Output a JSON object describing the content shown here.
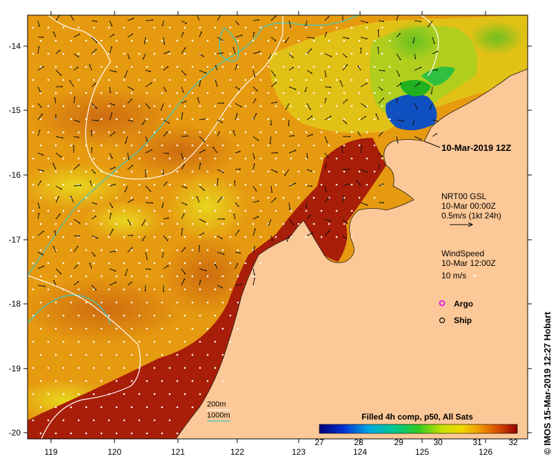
{
  "map": {
    "x_ticks": [
      "119",
      "120",
      "121",
      "122",
      "123",
      "124",
      "125",
      "126"
    ],
    "y_ticks": [
      "-14",
      "-15",
      "-16",
      "-17",
      "-18",
      "-19",
      "-20"
    ],
    "snapshot_label": "10-Mar-2019 12Z",
    "current_legend": {
      "line1": "NRT00 GSL",
      "line2": "10-Mar 00:00Z",
      "line3": "0.5m/s (1kt 24h)"
    },
    "wind_legend": {
      "line1": "WindSpeed",
      "line2": "10-Mar 12:00Z",
      "line3": "10 m/s"
    },
    "markers": {
      "argo": "Argo",
      "ship": "Ship"
    },
    "contours": {
      "c200": "200m",
      "c1000": "1000m"
    },
    "colorbar": {
      "title": "Filled 4h comp, p50, All Sats",
      "ticks": [
        "27",
        "28",
        "29",
        "30",
        "31",
        "32"
      ]
    },
    "credit": "© IMOS 15-Mar-2019 12:27 Hobart",
    "colors": {
      "land": "#fcc897",
      "sst_warm": "#e69a10",
      "sst_hot": "#a81e08",
      "sst_cool": "#e8d400",
      "contour_200": "#40c8c0",
      "contour_1000": "#ffffff",
      "argo": "#e020e0"
    }
  }
}
